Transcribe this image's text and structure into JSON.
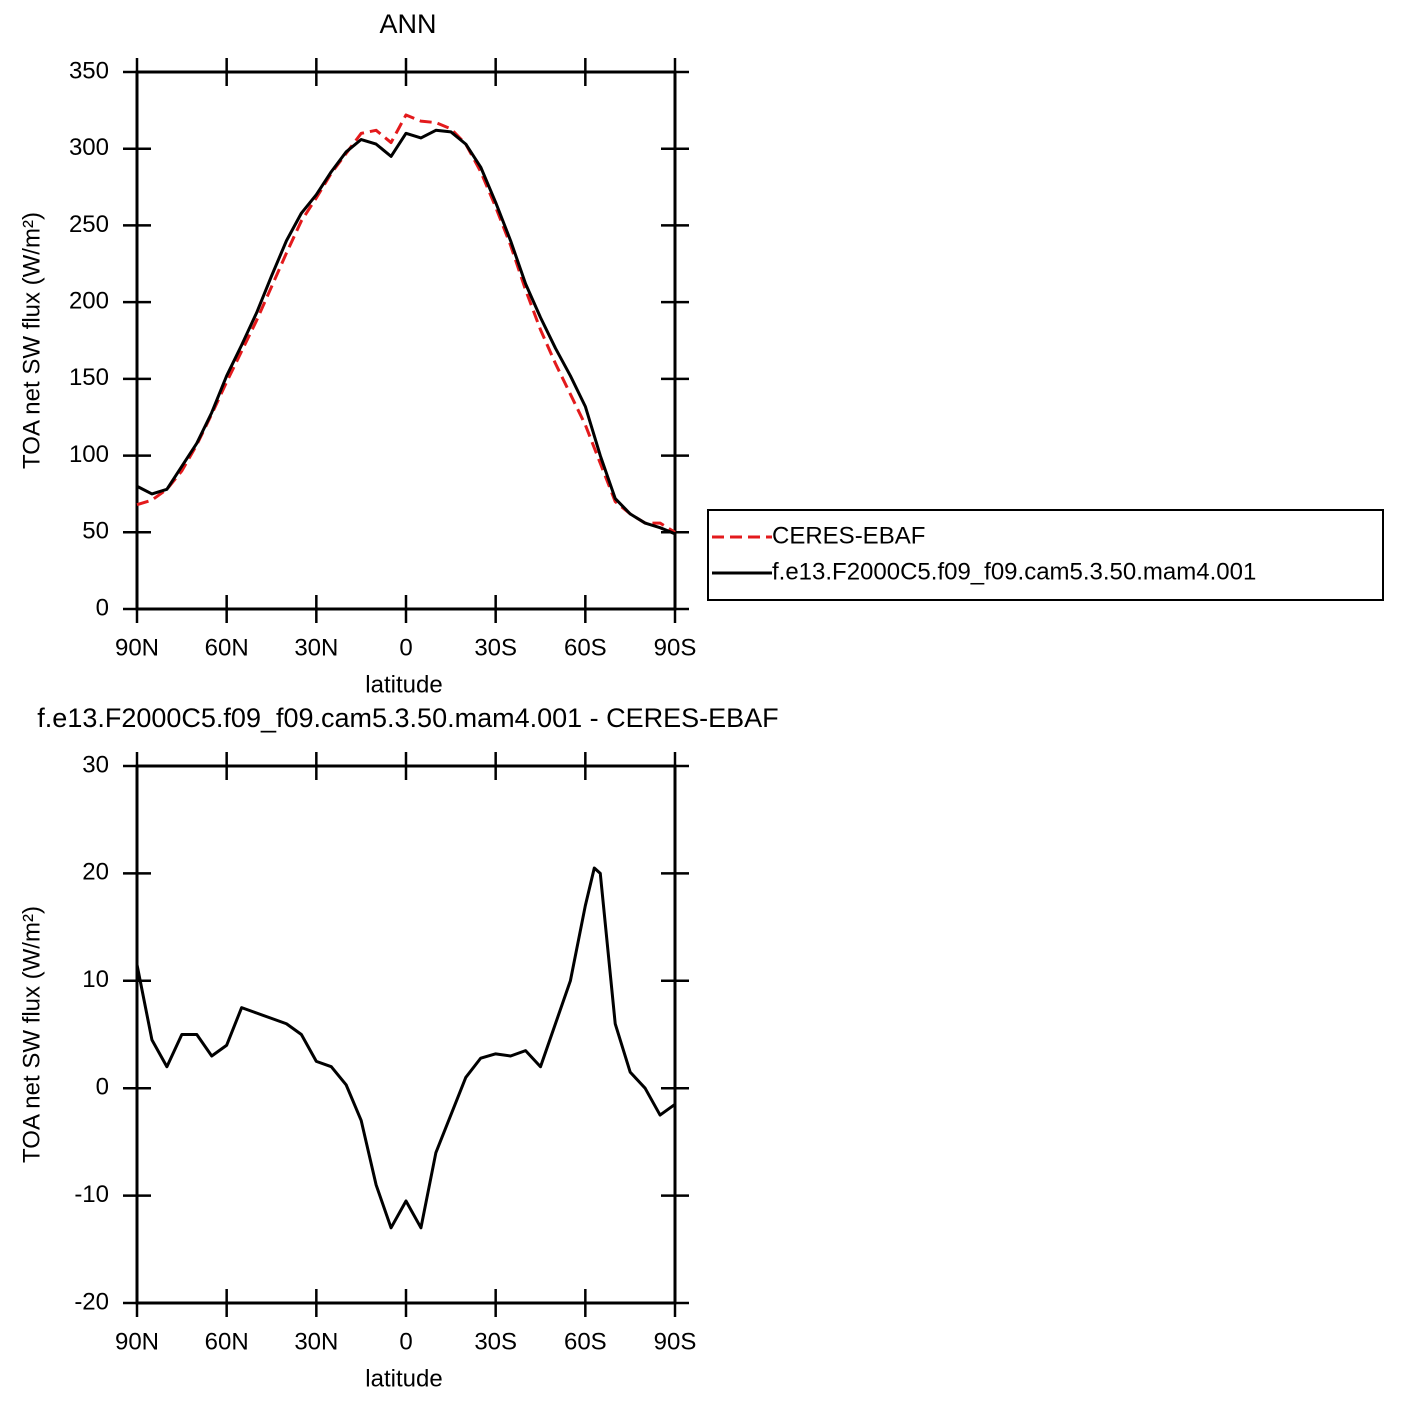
{
  "chart_data": [
    {
      "type": "line",
      "title": "ANN",
      "xlabel": "latitude",
      "ylabel": "TOA net SW flux (W/m²)",
      "x": [
        90,
        85,
        80,
        75,
        70,
        65,
        60,
        55,
        50,
        45,
        40,
        35,
        30,
        25,
        20,
        15,
        10,
        5,
        0,
        -5,
        -10,
        -15,
        -20,
        -25,
        -30,
        -35,
        -40,
        -45,
        -50,
        -55,
        -60,
        -65,
        -70,
        -75,
        -80,
        -85,
        -90
      ],
      "series": [
        {
          "name": "CERES-EBAF",
          "color": "#e31a1c",
          "linestyle": "dashed",
          "values": [
            68,
            71,
            78,
            90,
            107,
            127,
            148,
            168,
            188,
            210,
            232,
            253,
            268,
            284,
            297,
            310,
            312,
            304,
            322,
            318,
            317,
            313,
            303,
            285,
            262,
            237,
            208,
            182,
            160,
            140,
            120,
            95,
            70,
            62,
            56,
            56,
            50
          ]
        },
        {
          "name": "f.e13.F2000C5.f09_f09.cam5.3.50.mam4.001",
          "color": "#000000",
          "linestyle": "solid",
          "values": [
            80,
            75,
            78,
            93,
            108,
            128,
            152,
            172,
            193,
            217,
            240,
            258,
            270,
            285,
            298,
            306,
            303,
            295,
            310,
            307,
            312,
            311,
            303,
            288,
            265,
            240,
            212,
            190,
            170,
            152,
            132,
            100,
            72,
            62,
            56,
            53,
            49
          ]
        }
      ],
      "xlim": [
        90,
        -90
      ],
      "xticks": [
        {
          "value": 90,
          "label": "90N"
        },
        {
          "value": 60,
          "label": "60N"
        },
        {
          "value": 30,
          "label": "30N"
        },
        0,
        {
          "value": -30,
          "label": "30S"
        },
        {
          "value": -60,
          "label": "60S"
        },
        {
          "value": -90,
          "label": "90S"
        }
      ],
      "ylim": [
        0,
        350
      ],
      "yticks": [
        0,
        50,
        100,
        150,
        200,
        250,
        300,
        350
      ],
      "legend": "outside-right"
    },
    {
      "type": "line",
      "title": "f.e13.F2000C5.f09_f09.cam5.3.50.mam4.001 - CERES-EBAF",
      "xlabel": "latitude",
      "ylabel": "TOA net SW flux (W/m²)",
      "x": [
        90,
        85,
        80,
        75,
        70,
        65,
        60,
        55,
        50,
        45,
        40,
        35,
        30,
        25,
        20,
        15,
        10,
        5,
        0,
        -5,
        -10,
        -15,
        -20,
        -25,
        -30,
        -35,
        -40,
        -45,
        -50,
        -55,
        -60,
        -63,
        -65,
        -70,
        -75,
        -80,
        -85,
        -90
      ],
      "series": [
        {
          "color": "#000000",
          "linestyle": "solid",
          "values": [
            11.5,
            4.5,
            2,
            5,
            5,
            3,
            4,
            7.5,
            7,
            6.5,
            6,
            5,
            2.5,
            2,
            0.3,
            -3,
            -9,
            -13,
            -10.5,
            -13,
            -6,
            -2.5,
            1,
            2.8,
            3.2,
            3,
            3.5,
            2,
            6,
            10,
            17,
            20.5,
            20,
            6,
            1.5,
            0,
            -2.5,
            -1.5
          ]
        }
      ],
      "xlim": [
        90,
        -90
      ],
      "xticks": [
        {
          "value": 90,
          "label": "90N"
        },
        {
          "value": 60,
          "label": "60N"
        },
        {
          "value": 30,
          "label": "30N"
        },
        0,
        {
          "value": -30,
          "label": "30S"
        },
        {
          "value": -60,
          "label": "60S"
        },
        {
          "value": -90,
          "label": "90S"
        }
      ],
      "ylim": [
        -20,
        30
      ],
      "yticks": [
        -20,
        -10,
        0,
        10,
        20,
        30
      ]
    }
  ]
}
